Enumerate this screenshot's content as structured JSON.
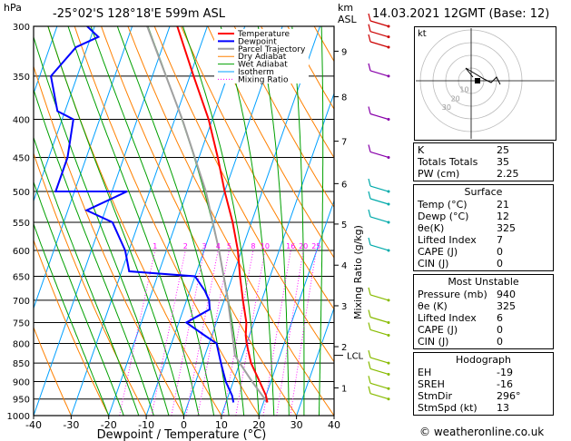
{
  "header": {
    "hpa_unit": "hPa",
    "location": "-25°02'S 128°18'E 599m ASL",
    "km_unit": "km",
    "asl_unit": "ASL",
    "datetime": "14.03.2021 12GMT (Base: 12)"
  },
  "colors": {
    "temperature": "#ff0000",
    "dewpoint": "#0000ff",
    "parcel": "#a0a0a0",
    "dry_adiabat": "#ff8000",
    "wet_adiabat": "#00a000",
    "isotherm": "#00a0ff",
    "mixing_ratio": "#ff00ff",
    "wind_barb": "#cc00cc"
  },
  "chart_data": {
    "type": "skew-t log-p",
    "xlabel": "Dewpoint / Temperature (°C)",
    "xlim": [
      -40,
      40
    ],
    "x_ticks": [
      "-40",
      "-30",
      "-20",
      "-10",
      "0",
      "10",
      "20",
      "30",
      "40"
    ],
    "pressure_levels": [
      "300",
      "350",
      "400",
      "450",
      "500",
      "550",
      "600",
      "650",
      "700",
      "750",
      "800",
      "850",
      "900",
      "950",
      "1000"
    ],
    "height_km_labels": [
      {
        "km": "1",
        "p": 918
      },
      {
        "km": "2",
        "p": 808
      },
      {
        "km": "3",
        "p": 712
      },
      {
        "km": "4",
        "p": 628
      },
      {
        "km": "5",
        "p": 553
      },
      {
        "km": "6",
        "p": 488
      },
      {
        "km": "7",
        "p": 428
      },
      {
        "km": "8",
        "p": 373
      },
      {
        "km": "9",
        "p": 324
      }
    ],
    "lcl_label": "LCL",
    "lcl_pressure": 830,
    "right_axis_label": "Mixing Ratio (g/kg)",
    "mixing_ratio_labels": [
      "1",
      "2",
      "3",
      "4",
      "5",
      "8",
      "10",
      "16",
      "20",
      "25"
    ],
    "mixing_ratio_values": [
      1,
      2,
      3,
      4,
      5,
      8,
      10,
      16,
      20,
      25
    ],
    "legend": [
      "Temperature",
      "Dewpoint",
      "Parcel Trajectory",
      "Dry Adiabat",
      "Wet Adiabat",
      "Isotherm",
      "Mixing Ratio"
    ],
    "temperature": [
      {
        "p": 960,
        "t": 21
      },
      {
        "p": 940,
        "t": 20
      },
      {
        "p": 900,
        "t": 17
      },
      {
        "p": 850,
        "t": 13
      },
      {
        "p": 800,
        "t": 10
      },
      {
        "p": 780,
        "t": 9
      },
      {
        "p": 750,
        "t": 8
      },
      {
        "p": 700,
        "t": 5
      },
      {
        "p": 650,
        "t": 2
      },
      {
        "p": 600,
        "t": -1
      },
      {
        "p": 550,
        "t": -5
      },
      {
        "p": 500,
        "t": -10
      },
      {
        "p": 450,
        "t": -15
      },
      {
        "p": 400,
        "t": -21
      },
      {
        "p": 350,
        "t": -29
      },
      {
        "p": 300,
        "t": -38
      }
    ],
    "dewpoint": [
      {
        "p": 960,
        "t": 12
      },
      {
        "p": 940,
        "t": 11
      },
      {
        "p": 900,
        "t": 8
      },
      {
        "p": 850,
        "t": 5
      },
      {
        "p": 800,
        "t": 2
      },
      {
        "p": 780,
        "t": -2
      },
      {
        "p": 750,
        "t": -8
      },
      {
        "p": 720,
        "t": -3
      },
      {
        "p": 700,
        "t": -4
      },
      {
        "p": 680,
        "t": -6
      },
      {
        "p": 650,
        "t": -10
      },
      {
        "p": 640,
        "t": -28
      },
      {
        "p": 600,
        "t": -31
      },
      {
        "p": 550,
        "t": -37
      },
      {
        "p": 530,
        "t": -45
      },
      {
        "p": 500,
        "t": -36
      },
      {
        "p": 500,
        "t": -55
      },
      {
        "p": 450,
        "t": -55
      },
      {
        "p": 400,
        "t": -57
      },
      {
        "p": 390,
        "t": -62
      },
      {
        "p": 350,
        "t": -67
      },
      {
        "p": 320,
        "t": -63
      },
      {
        "p": 310,
        "t": -58
      },
      {
        "p": 300,
        "t": -62
      }
    ],
    "parcel": [
      {
        "p": 960,
        "t": 21
      },
      {
        "p": 900,
        "t": 15
      },
      {
        "p": 850,
        "t": 10
      },
      {
        "p": 830,
        "t": 8
      },
      {
        "p": 800,
        "t": 6.5
      },
      {
        "p": 700,
        "t": 1
      },
      {
        "p": 600,
        "t": -6
      },
      {
        "p": 500,
        "t": -15
      },
      {
        "p": 400,
        "t": -28
      },
      {
        "p": 300,
        "t": -46
      }
    ]
  },
  "hodograph": {
    "unit_label": "kt",
    "ring_labels": [
      "10",
      "20",
      "30"
    ]
  },
  "indices": {
    "top": [
      {
        "label": "K",
        "value": "25"
      },
      {
        "label": "Totals Totals",
        "value": "35"
      },
      {
        "label": "PW (cm)",
        "value": "2.25"
      }
    ],
    "surface": {
      "title": "Surface",
      "rows": [
        {
          "label": "Temp (°C)",
          "value": "21"
        },
        {
          "label": "Dewp (°C)",
          "value": "12"
        },
        {
          "label": "θe(K)",
          "value": "325"
        },
        {
          "label": "Lifted Index",
          "value": "7"
        },
        {
          "label": "CAPE (J)",
          "value": "0"
        },
        {
          "label": "CIN (J)",
          "value": "0"
        }
      ]
    },
    "most_unstable": {
      "title": "Most Unstable",
      "rows": [
        {
          "label": "Pressure (mb)",
          "value": "940"
        },
        {
          "label": "θe (K)",
          "value": "325"
        },
        {
          "label": "Lifted Index",
          "value": "6"
        },
        {
          "label": "CAPE (J)",
          "value": "0"
        },
        {
          "label": "CIN (J)",
          "value": "0"
        }
      ]
    },
    "hodograph_box": {
      "title": "Hodograph",
      "rows": [
        {
          "label": "EH",
          "value": "-19"
        },
        {
          "label": "SREH",
          "value": "-16"
        },
        {
          "label": "StmDir",
          "value": "296°"
        },
        {
          "label": "StmSpd (kt)",
          "value": "13"
        }
      ]
    }
  },
  "copyright": "© weatheronline.co.uk"
}
